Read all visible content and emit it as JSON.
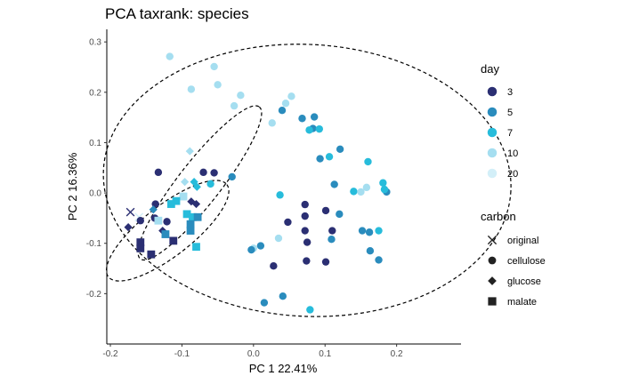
{
  "chart_data": {
    "type": "scatter",
    "title": "PCA taxrank: species",
    "xlabel": "PC 1 22.41%",
    "ylabel": "PC 2 16.36%",
    "xlim": [
      -0.205,
      0.29
    ],
    "ylim": [
      -0.3,
      0.325
    ],
    "xticks": [
      -0.2,
      -0.1,
      0.0,
      0.1,
      0.2
    ],
    "xtick_labels": [
      "-0.2",
      "-0.1",
      "0.0",
      "0.1",
      "0.2"
    ],
    "yticks": [
      -0.2,
      -0.1,
      0.0,
      0.1,
      0.2,
      0.3
    ],
    "ytick_labels": [
      "-0.2",
      "-0.1",
      "0.0",
      "0.1",
      "0.2",
      "0.3"
    ],
    "grid": false,
    "legend_placement": "right",
    "colors": {
      "3": "#2b2f73",
      "5": "#2a8cbd",
      "7": "#27bcdb",
      "10": "#a5def0",
      "20": "#d3eff8"
    },
    "legend_day": {
      "title": "day",
      "items": [
        "3",
        "5",
        "7",
        "10",
        "20"
      ]
    },
    "legend_carbon": {
      "title": "carbon",
      "items": [
        {
          "label": "original",
          "shape": "x"
        },
        {
          "label": "cellulose",
          "shape": "circle"
        },
        {
          "label": "glucose",
          "shape": "diamond"
        },
        {
          "label": "malate",
          "shape": "square"
        }
      ]
    },
    "ellipses": [
      {
        "center": [
          0.075,
          0.025
        ],
        "rx": 0.285,
        "ry": 0.27,
        "angle": -3
      },
      {
        "center": [
          -0.075,
          0.02
        ],
        "rx": 0.135,
        "ry": 0.042,
        "angle": 52
      },
      {
        "center": [
          -0.12,
          -0.075
        ],
        "rx": 0.105,
        "ry": 0.05,
        "angle": 38
      }
    ],
    "points": [
      {
        "x": -0.172,
        "y": -0.038,
        "day": "3",
        "carbon": "original"
      },
      {
        "x": -0.16,
        "y": -0.048,
        "day": "20",
        "carbon": "original"
      },
      {
        "x": -0.117,
        "y": 0.271,
        "day": "10",
        "carbon": "cellulose"
      },
      {
        "x": -0.055,
        "y": 0.251,
        "day": "10",
        "carbon": "cellulose"
      },
      {
        "x": -0.05,
        "y": 0.215,
        "day": "10",
        "carbon": "cellulose"
      },
      {
        "x": -0.087,
        "y": 0.206,
        "day": "10",
        "carbon": "cellulose"
      },
      {
        "x": -0.018,
        "y": 0.194,
        "day": "10",
        "carbon": "cellulose"
      },
      {
        "x": -0.027,
        "y": 0.173,
        "day": "10",
        "carbon": "cellulose"
      },
      {
        "x": 0.053,
        "y": 0.192,
        "day": "10",
        "carbon": "cellulose"
      },
      {
        "x": 0.045,
        "y": 0.178,
        "day": "10",
        "carbon": "cellulose"
      },
      {
        "x": 0.026,
        "y": 0.139,
        "day": "10",
        "carbon": "cellulose"
      },
      {
        "x": 0.04,
        "y": 0.164,
        "day": "5",
        "carbon": "cellulose"
      },
      {
        "x": 0.068,
        "y": 0.148,
        "day": "5",
        "carbon": "cellulose"
      },
      {
        "x": 0.085,
        "y": 0.151,
        "day": "5",
        "carbon": "cellulose"
      },
      {
        "x": 0.083,
        "y": 0.128,
        "day": "5",
        "carbon": "cellulose"
      },
      {
        "x": 0.078,
        "y": 0.125,
        "day": "7",
        "carbon": "cellulose"
      },
      {
        "x": 0.092,
        "y": 0.127,
        "day": "7",
        "carbon": "cellulose"
      },
      {
        "x": 0.121,
        "y": 0.087,
        "day": "5",
        "carbon": "cellulose"
      },
      {
        "x": 0.106,
        "y": 0.072,
        "day": "7",
        "carbon": "cellulose"
      },
      {
        "x": 0.093,
        "y": 0.068,
        "day": "5",
        "carbon": "cellulose"
      },
      {
        "x": 0.16,
        "y": 0.062,
        "day": "7",
        "carbon": "cellulose"
      },
      {
        "x": 0.113,
        "y": 0.017,
        "day": "5",
        "carbon": "cellulose"
      },
      {
        "x": 0.158,
        "y": 0.011,
        "day": "10",
        "carbon": "cellulose"
      },
      {
        "x": 0.14,
        "y": 0.003,
        "day": "7",
        "carbon": "cellulose"
      },
      {
        "x": 0.181,
        "y": 0.02,
        "day": "7",
        "carbon": "cellulose"
      },
      {
        "x": 0.186,
        "y": 0.002,
        "day": "5",
        "carbon": "cellulose"
      },
      {
        "x": 0.183,
        "y": 0.007,
        "day": "7",
        "carbon": "cellulose"
      },
      {
        "x": 0.15,
        "y": 0.002,
        "day": "10",
        "carbon": "cellulose"
      },
      {
        "x": 0.037,
        "y": -0.004,
        "day": "7",
        "carbon": "cellulose"
      },
      {
        "x": -0.133,
        "y": 0.041,
        "day": "3",
        "carbon": "cellulose"
      },
      {
        "x": -0.07,
        "y": 0.041,
        "day": "3",
        "carbon": "cellulose"
      },
      {
        "x": -0.055,
        "y": 0.04,
        "day": "3",
        "carbon": "cellulose"
      },
      {
        "x": -0.03,
        "y": 0.032,
        "day": "5",
        "carbon": "cellulose"
      },
      {
        "x": -0.06,
        "y": 0.018,
        "day": "7",
        "carbon": "cellulose"
      },
      {
        "x": -0.137,
        "y": -0.022,
        "day": "3",
        "carbon": "cellulose"
      },
      {
        "x": -0.138,
        "y": -0.05,
        "day": "3",
        "carbon": "cellulose"
      },
      {
        "x": -0.158,
        "y": -0.055,
        "day": "3",
        "carbon": "cellulose"
      },
      {
        "x": -0.121,
        "y": -0.057,
        "day": "3",
        "carbon": "cellulose"
      },
      {
        "x": 0.072,
        "y": -0.023,
        "day": "3",
        "carbon": "cellulose"
      },
      {
        "x": 0.101,
        "y": -0.035,
        "day": "3",
        "carbon": "cellulose"
      },
      {
        "x": 0.072,
        "y": -0.046,
        "day": "3",
        "carbon": "cellulose"
      },
      {
        "x": 0.048,
        "y": -0.058,
        "day": "3",
        "carbon": "cellulose"
      },
      {
        "x": 0.12,
        "y": -0.042,
        "day": "5",
        "carbon": "cellulose"
      },
      {
        "x": 0.152,
        "y": -0.075,
        "day": "5",
        "carbon": "cellulose"
      },
      {
        "x": 0.162,
        "y": -0.078,
        "day": "5",
        "carbon": "cellulose"
      },
      {
        "x": 0.175,
        "y": -0.075,
        "day": "7",
        "carbon": "cellulose"
      },
      {
        "x": 0.11,
        "y": -0.075,
        "day": "3",
        "carbon": "cellulose"
      },
      {
        "x": 0.072,
        "y": -0.075,
        "day": "3",
        "carbon": "cellulose"
      },
      {
        "x": 0.109,
        "y": -0.092,
        "day": "5",
        "carbon": "cellulose"
      },
      {
        "x": 0.035,
        "y": -0.09,
        "day": "10",
        "carbon": "cellulose"
      },
      {
        "x": 0.01,
        "y": -0.105,
        "day": "5",
        "carbon": "cellulose"
      },
      {
        "x": 0.0,
        "y": -0.11,
        "day": "10",
        "carbon": "cellulose"
      },
      {
        "x": -0.003,
        "y": -0.113,
        "day": "5",
        "carbon": "cellulose"
      },
      {
        "x": 0.075,
        "y": -0.098,
        "day": "3",
        "carbon": "cellulose"
      },
      {
        "x": 0.074,
        "y": -0.135,
        "day": "3",
        "carbon": "cellulose"
      },
      {
        "x": 0.101,
        "y": -0.137,
        "day": "3",
        "carbon": "cellulose"
      },
      {
        "x": 0.163,
        "y": -0.115,
        "day": "5",
        "carbon": "cellulose"
      },
      {
        "x": 0.175,
        "y": -0.133,
        "day": "5",
        "carbon": "cellulose"
      },
      {
        "x": 0.028,
        "y": -0.145,
        "day": "3",
        "carbon": "cellulose"
      },
      {
        "x": 0.041,
        "y": -0.205,
        "day": "5",
        "carbon": "cellulose"
      },
      {
        "x": 0.015,
        "y": -0.218,
        "day": "5",
        "carbon": "cellulose"
      },
      {
        "x": 0.079,
        "y": -0.232,
        "day": "7",
        "carbon": "cellulose"
      },
      {
        "x": -0.089,
        "y": 0.083,
        "day": "10",
        "carbon": "glucose"
      },
      {
        "x": -0.096,
        "y": 0.022,
        "day": "10",
        "carbon": "glucose"
      },
      {
        "x": -0.083,
        "y": 0.022,
        "day": "7",
        "carbon": "glucose"
      },
      {
        "x": -0.079,
        "y": 0.012,
        "day": "7",
        "carbon": "glucose"
      },
      {
        "x": -0.087,
        "y": -0.017,
        "day": "3",
        "carbon": "glucose"
      },
      {
        "x": -0.08,
        "y": -0.022,
        "day": "3",
        "carbon": "glucose"
      },
      {
        "x": -0.14,
        "y": -0.033,
        "day": "5",
        "carbon": "glucose"
      },
      {
        "x": -0.127,
        "y": -0.075,
        "day": "3",
        "carbon": "glucose"
      },
      {
        "x": -0.175,
        "y": -0.068,
        "day": "3",
        "carbon": "glucose"
      },
      {
        "x": -0.098,
        "y": -0.007,
        "day": "10",
        "carbon": "malate"
      },
      {
        "x": -0.108,
        "y": -0.016,
        "day": "7",
        "carbon": "malate"
      },
      {
        "x": -0.115,
        "y": -0.022,
        "day": "7",
        "carbon": "malate"
      },
      {
        "x": -0.093,
        "y": -0.042,
        "day": "7",
        "carbon": "malate"
      },
      {
        "x": -0.085,
        "y": -0.048,
        "day": "7",
        "carbon": "malate"
      },
      {
        "x": -0.078,
        "y": -0.048,
        "day": "5",
        "carbon": "malate"
      },
      {
        "x": -0.133,
        "y": -0.055,
        "day": "10",
        "carbon": "malate"
      },
      {
        "x": -0.088,
        "y": -0.062,
        "day": "5",
        "carbon": "malate"
      },
      {
        "x": -0.088,
        "y": -0.075,
        "day": "5",
        "carbon": "malate"
      },
      {
        "x": -0.123,
        "y": -0.082,
        "day": "5",
        "carbon": "malate"
      },
      {
        "x": -0.112,
        "y": -0.095,
        "day": "3",
        "carbon": "malate"
      },
      {
        "x": -0.08,
        "y": -0.107,
        "day": "7",
        "carbon": "malate"
      },
      {
        "x": -0.158,
        "y": -0.098,
        "day": "3",
        "carbon": "malate"
      },
      {
        "x": -0.158,
        "y": -0.11,
        "day": "3",
        "carbon": "malate"
      },
      {
        "x": -0.143,
        "y": -0.122,
        "day": "3",
        "carbon": "malate"
      }
    ]
  }
}
